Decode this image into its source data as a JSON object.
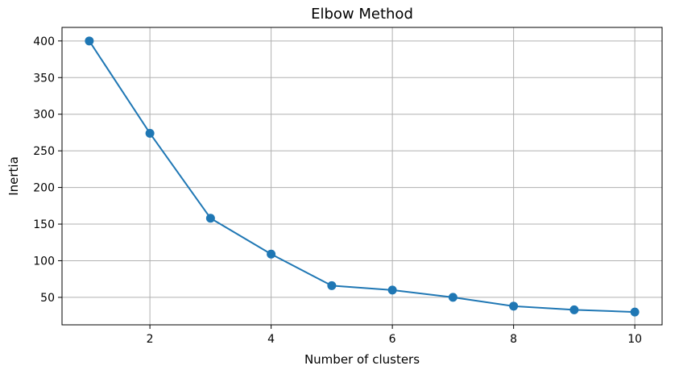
{
  "chart_data": {
    "type": "line",
    "title": "Elbow Method",
    "xlabel": "Number of clusters",
    "ylabel": "Inertia",
    "x": [
      1,
      2,
      3,
      4,
      5,
      6,
      7,
      8,
      9,
      10
    ],
    "series": [
      {
        "values": [
          400,
          274,
          158,
          109,
          66,
          60,
          50,
          38,
          33,
          30
        ],
        "color": "#1f77b4",
        "marker": "circle"
      }
    ],
    "xticks": [
      2,
      4,
      6,
      8,
      10
    ],
    "yticks": [
      50,
      100,
      150,
      200,
      250,
      300,
      350,
      400
    ],
    "xlim": [
      0.55,
      10.45
    ],
    "ylim": [
      12.5,
      418.5
    ],
    "grid": true
  }
}
